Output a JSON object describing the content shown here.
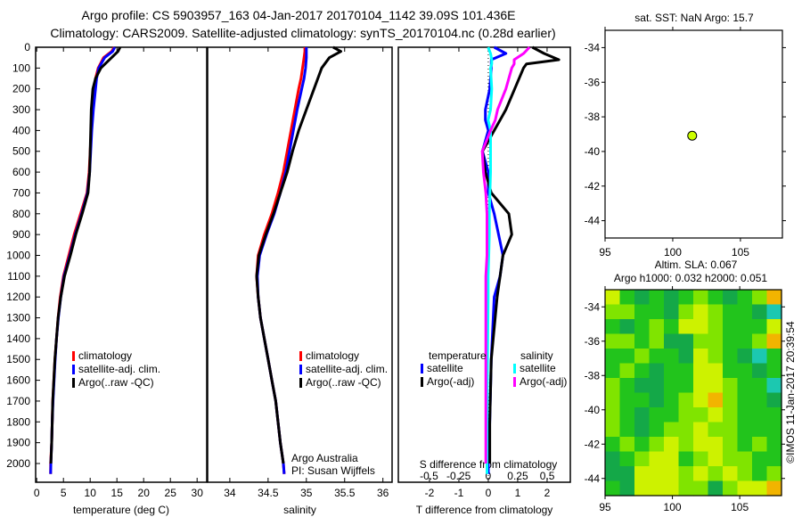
{
  "header": {
    "title_line1": "Argo profile: CS 5903957_163 04-Jan-2017 20170104_1142 39.09S 101.436E",
    "title_line2": "Climatology: CARS2009. Satellite-adjusted climatology: synTS_20170104.nc (0.28d earlier)"
  },
  "colors": {
    "climatology": "#ff0000",
    "satellite": "#0000ff",
    "argo": "#000000",
    "sal_satellite": "#00ffff",
    "sal_argo": "#ff00ff"
  },
  "chart_data": [
    {
      "type": "line",
      "name": "temperature",
      "xlabel": "temperature (deg C)",
      "xlim": [
        -0.2,
        31.8
      ],
      "ylim": [
        0,
        2090
      ],
      "xticks": [
        "0",
        "5",
        "10",
        "15",
        "20",
        "25",
        "30"
      ],
      "yticks": [
        "0",
        "100",
        "200",
        "300",
        "400",
        "500",
        "600",
        "700",
        "800",
        "900",
        "1000",
        "1100",
        "1200",
        "1300",
        "1400",
        "1500",
        "1600",
        "1700",
        "1800",
        "1900",
        "2000"
      ],
      "depth": [
        0,
        20,
        50,
        100,
        150,
        200,
        300,
        400,
        500,
        600,
        700,
        800,
        900,
        1000,
        1100,
        1200,
        1300,
        1400,
        1500,
        1600,
        1700,
        1800,
        1900,
        2000,
        2050
      ],
      "series": [
        {
          "name": "climatology",
          "key": "climatology",
          "values": [
            14.5,
            14,
            12.5,
            11.5,
            11,
            10.8,
            10.5,
            10.2,
            10,
            9.8,
            9.4,
            8.2,
            7,
            6,
            5,
            4.4,
            4,
            3.7,
            3.4,
            3.2,
            3,
            2.9,
            2.8,
            2.6,
            2.6
          ]
        },
        {
          "name": "satellite-adj. clim.",
          "key": "satellite",
          "values": [
            14.6,
            14.2,
            12.7,
            11.6,
            11.2,
            11,
            10.6,
            10.3,
            10.1,
            9.9,
            9.5,
            8.4,
            7.2,
            6.2,
            5.1,
            4.5,
            4.05,
            3.7,
            3.45,
            3.25,
            3.05,
            2.9,
            2.8,
            2.65,
            2.6
          ]
        },
        {
          "name": "Argo(..raw -QC)",
          "key": "argo",
          "values": [
            15.6,
            15.2,
            14,
            12,
            11,
            10.5,
            10.2,
            10.1,
            10,
            9.9,
            9.6,
            8.5,
            7.3,
            6.3,
            5.2,
            4.5,
            4.0,
            3.7,
            3.4,
            3.2,
            3.0,
            2.9,
            2.8,
            2.65,
            null
          ]
        }
      ]
    },
    {
      "type": "line",
      "name": "salinity",
      "xlabel": "salinity",
      "xlim": [
        33.71,
        36.12
      ],
      "ylim": [
        0,
        2090
      ],
      "xticks": [
        "34",
        "34.5",
        "35",
        "35.5",
        "36"
      ],
      "depth": [
        0,
        20,
        50,
        100,
        150,
        200,
        300,
        400,
        500,
        600,
        700,
        800,
        900,
        1000,
        1100,
        1200,
        1300,
        1400,
        1500,
        1600,
        1700,
        1800,
        1900,
        2000,
        2050
      ],
      "series": [
        {
          "name": "climatology",
          "key": "climatology",
          "values": [
            34.98,
            34.98,
            34.97,
            34.95,
            34.93,
            34.9,
            34.85,
            34.8,
            34.75,
            34.7,
            34.63,
            34.55,
            34.45,
            34.37,
            34.35,
            34.37,
            34.4,
            34.45,
            34.5,
            34.55,
            34.6,
            34.63,
            34.66,
            34.7,
            34.71
          ]
        },
        {
          "name": "satellite-adj. clim.",
          "key": "satellite",
          "values": [
            35.0,
            35.0,
            35.0,
            34.99,
            34.97,
            34.94,
            34.88,
            34.83,
            34.78,
            34.73,
            34.66,
            34.58,
            34.48,
            34.39,
            34.36,
            34.37,
            34.4,
            34.45,
            34.5,
            34.55,
            34.6,
            34.63,
            34.66,
            34.7,
            34.71
          ]
        },
        {
          "name": "Argo(..raw -QC)",
          "key": "argo",
          "values": [
            35.35,
            35.45,
            35.3,
            35.2,
            35.15,
            35.1,
            35.0,
            34.9,
            34.82,
            34.75,
            34.66,
            34.57,
            34.47,
            34.38,
            34.35,
            34.37,
            34.4,
            34.45,
            34.5,
            34.55,
            34.6,
            34.63,
            34.66,
            34.7,
            null
          ]
        }
      ],
      "annotations": [
        "Argo Australia",
        "PI: Susan Wijffels"
      ]
    },
    {
      "type": "line",
      "name": "difference",
      "xlabel": "T difference from climatology",
      "x2label": "S difference from climatology",
      "xlim": [
        -3.06,
        2.79
      ],
      "x2lim": [
        -0.76,
        0.695
      ],
      "ylim": [
        0,
        2090
      ],
      "xticks": [
        "-2",
        "-1",
        "0",
        "1",
        "2"
      ],
      "x2ticks": [
        "-0.5",
        "-0.25",
        "0",
        "0.25",
        "0.5"
      ],
      "depth": [
        0,
        30,
        60,
        80,
        100,
        200,
        300,
        350,
        400,
        500,
        600,
        700,
        800,
        900,
        1000,
        1100,
        1200,
        1500,
        1800,
        2000,
        2050
      ],
      "legend_headers": [
        "temperature",
        "salinity"
      ],
      "series": [
        {
          "name": "satellite",
          "group": "temperature",
          "axis": "T",
          "key": "satellite",
          "values": [
            0.2,
            0.6,
            0.1,
            0.1,
            0.1,
            0.05,
            -0.1,
            -0.1,
            0,
            -0.2,
            0.0,
            0.0,
            0.2,
            0.35,
            0.5,
            0.4,
            0.2,
            0.1,
            0.05,
            0.0,
            0.0
          ]
        },
        {
          "name": "Argo(-adj)",
          "group": "temperature",
          "axis": "T",
          "key": "argo",
          "values": [
            1.5,
            1.9,
            2.4,
            1.3,
            1.2,
            0.9,
            0.6,
            0.4,
            0.2,
            -0.2,
            -0.1,
            0.1,
            0.7,
            0.8,
            0.5,
            0.4,
            0.3,
            0.1,
            0.05,
            0.05,
            null
          ]
        },
        {
          "name": "satellite",
          "group": "salinity",
          "axis": "S",
          "key": "sal_satellite",
          "values": [
            0,
            0.02,
            0.03,
            0.03,
            0.02,
            0.03,
            0.02,
            0.0,
            0.02,
            0.02,
            0.02,
            0.015,
            0.01,
            0.01,
            0.005,
            0.0,
            0.0,
            -0.005,
            -0.01,
            -0.01,
            -0.01
          ]
        },
        {
          "name": "Argo(-adj)",
          "group": "salinity",
          "axis": "S",
          "key": "sal_argo",
          "values": [
            0.35,
            0.3,
            0.22,
            0.22,
            0.2,
            0.15,
            0.08,
            0.06,
            0.02,
            -0.05,
            -0.04,
            -0.02,
            -0.01,
            -0.01,
            -0.01,
            -0.02,
            -0.02,
            -0.02,
            -0.02,
            -0.02,
            null
          ]
        }
      ]
    },
    {
      "type": "scatter",
      "name": "sst-map",
      "title": "sat. SST: NaN Argo: 15.7",
      "xlim": [
        95,
        108.1
      ],
      "ylim": [
        -45,
        -33
      ],
      "xticks": [
        "95",
        "100",
        "105"
      ],
      "yticks": [
        "-34",
        "-36",
        "-38",
        "-40",
        "-42",
        "-44"
      ],
      "points": [
        {
          "lon": 101.436,
          "lat": -39.09,
          "color": "#ccff00"
        }
      ]
    },
    {
      "type": "heatmap",
      "name": "sla-map",
      "title_line1": "Altim. SLA: 0.067",
      "title_line2": "Argo h1000: 0.032 h2000: 0.051",
      "xlim": [
        95,
        108.1
      ],
      "ylim": [
        -45,
        -33
      ],
      "xticks": [
        "95",
        "100",
        "105"
      ],
      "yticks": [
        "-34",
        "-36",
        "-38",
        "-40",
        "-42",
        "-44"
      ],
      "level_colors": {
        "-2": "#1cc8b0",
        "-1": "#14a848",
        "0": "#22c41c",
        "1": "#80e400",
        "2": "#cdf200",
        "3": "#f2b400"
      },
      "grid_rows_north_to_south": [
        [
          2,
          0,
          -1,
          0,
          -1,
          0,
          1,
          0,
          -1,
          0,
          1,
          3
        ],
        [
          1,
          1,
          0,
          0,
          -1,
          1,
          2,
          1,
          0,
          0,
          -1,
          -2
        ],
        [
          0,
          -1,
          0,
          1,
          0,
          2,
          2,
          1,
          0,
          0,
          0,
          2
        ],
        [
          1,
          1,
          0,
          1,
          -1,
          -1,
          1,
          1,
          0,
          0,
          1,
          3
        ],
        [
          0,
          0,
          1,
          0,
          0,
          -1,
          2,
          1,
          0,
          -1,
          -2,
          0
        ],
        [
          0,
          1,
          0,
          -1,
          0,
          0,
          2,
          2,
          0,
          0,
          -1,
          0
        ],
        [
          1,
          0,
          -1,
          -1,
          0,
          0,
          2,
          2,
          1,
          0,
          0,
          -2
        ],
        [
          1,
          0,
          0,
          -1,
          0,
          1,
          2,
          3,
          1,
          0,
          0,
          -1
        ],
        [
          1,
          0,
          -1,
          0,
          0,
          1,
          1,
          2,
          1,
          0,
          0,
          0
        ],
        [
          1,
          0,
          -1,
          0,
          1,
          1,
          2,
          1,
          1,
          0,
          0,
          0
        ],
        [
          0,
          1,
          0,
          1,
          2,
          1,
          2,
          2,
          1,
          0,
          1,
          0
        ],
        [
          -1,
          0,
          1,
          2,
          2,
          0,
          1,
          2,
          1,
          1,
          0,
          0
        ],
        [
          -1,
          -1,
          2,
          2,
          2,
          1,
          2,
          1,
          2,
          1,
          0,
          1
        ],
        [
          0,
          -1,
          2,
          2,
          2,
          1,
          1,
          -1,
          1,
          2,
          2,
          3
        ]
      ],
      "credit": "©IMOS 11-Jan-2017 20:39:54"
    }
  ]
}
